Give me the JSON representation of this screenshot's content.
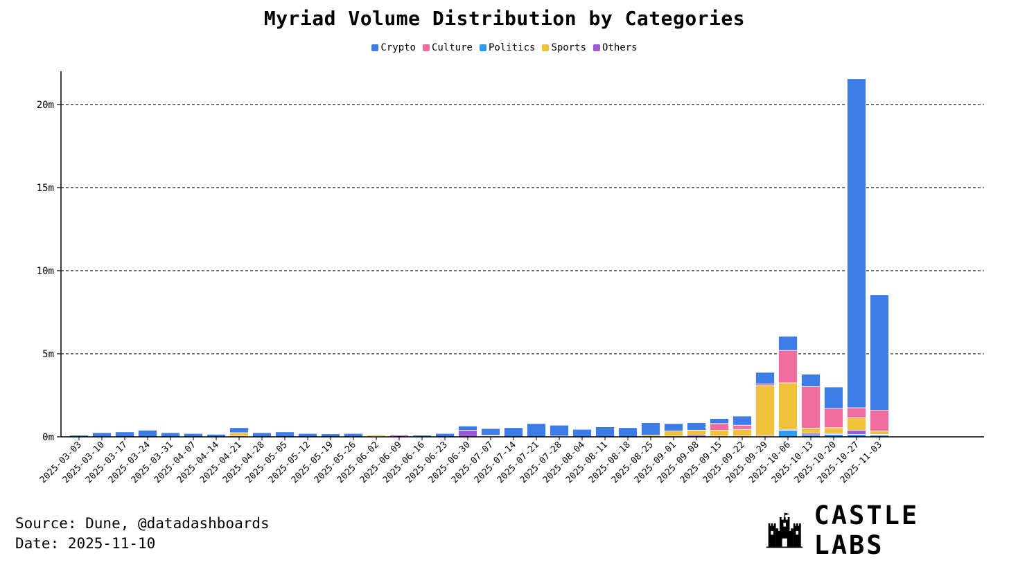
{
  "chart_data": {
    "type": "bar",
    "stacked": true,
    "title": "Myriad Volume Distribution by Categories",
    "xlabel": "",
    "ylabel": "",
    "ylim": [
      0,
      22
    ],
    "y_ticks": [
      0,
      5,
      10,
      15,
      20
    ],
    "y_tick_labels": [
      "0m",
      "5m",
      "10m",
      "15m",
      "20m"
    ],
    "grid": "horizontal dashed",
    "legend_position": "top-center",
    "categories": [
      "2025-03-03",
      "2025-03-10",
      "2025-03-17",
      "2025-03-24",
      "2025-03-31",
      "2025-04-07",
      "2025-04-14",
      "2025-04-21",
      "2025-04-28",
      "2025-05-05",
      "2025-05-12",
      "2025-05-19",
      "2025-05-26",
      "2025-06-02",
      "2025-06-09",
      "2025-06-16",
      "2025-06-23",
      "2025-06-30",
      "2025-07-07",
      "2025-07-14",
      "2025-07-21",
      "2025-07-28",
      "2025-08-04",
      "2025-08-11",
      "2025-08-18",
      "2025-08-25",
      "2025-09-01",
      "2025-09-08",
      "2025-09-15",
      "2025-09-22",
      "2025-09-29",
      "2025-10-06",
      "2025-10-13",
      "2025-10-20",
      "2025-10-27",
      "2025-11-03"
    ],
    "series": [
      {
        "name": "Politics",
        "color": "#2d9bf0",
        "values": [
          0,
          0,
          0,
          0,
          0,
          0,
          0,
          0,
          0,
          0,
          0,
          0,
          0,
          0,
          0,
          0,
          0,
          0,
          0,
          0,
          0,
          0,
          0,
          0,
          0,
          0,
          0,
          0,
          0,
          0,
          0.03,
          0.4,
          0.12,
          0.15,
          0.15,
          0.1
        ]
      },
      {
        "name": "Others",
        "color": "#9b59d6",
        "values": [
          0,
          0,
          0,
          0,
          0,
          0,
          0,
          0.05,
          0,
          0,
          0,
          0,
          0,
          0.02,
          0.1,
          0,
          0,
          0.4,
          0.05,
          0,
          0,
          0.05,
          0,
          0,
          0,
          0,
          0.05,
          0.1,
          0.05,
          0.05,
          0.05,
          0.05,
          0.1,
          0.05,
          0.25,
          0.05
        ]
      },
      {
        "name": "Sports",
        "color": "#f0c23c",
        "values": [
          0,
          0,
          0,
          0,
          0,
          0,
          0,
          0.2,
          0,
          0,
          0,
          0,
          0,
          0.08,
          0,
          0,
          0,
          0,
          0.05,
          0,
          0,
          0,
          0,
          0,
          0,
          0.1,
          0.3,
          0.3,
          0.35,
          0.4,
          3.0,
          2.8,
          0.3,
          0.35,
          0.75,
          0.2
        ]
      },
      {
        "name": "Culture",
        "color": "#f06b9e",
        "values": [
          0,
          0,
          0,
          0,
          0,
          0,
          0,
          0,
          0,
          0,
          0,
          0,
          0,
          0,
          0.03,
          0,
          0,
          0,
          0,
          0,
          0,
          0,
          0,
          0,
          0,
          0,
          0,
          0,
          0.4,
          0.25,
          0.1,
          1.95,
          2.5,
          1.15,
          0.6,
          1.25
        ]
      },
      {
        "name": "Crypto",
        "color": "#3d7be6",
        "values": [
          0.1,
          0.25,
          0.3,
          0.4,
          0.25,
          0.2,
          0.15,
          0.3,
          0.25,
          0.3,
          0.2,
          0.18,
          0.2,
          0,
          0,
          0.1,
          0.2,
          0.25,
          0.4,
          0.55,
          0.8,
          0.65,
          0.45,
          0.6,
          0.55,
          0.75,
          0.45,
          0.45,
          0.3,
          0.55,
          0.7,
          0.85,
          0.75,
          1.3,
          19.8,
          6.95
        ]
      }
    ],
    "legend_order": [
      "Crypto",
      "Culture",
      "Politics",
      "Sports",
      "Others"
    ]
  },
  "footer": {
    "source": "Source: Dune, @datadashboards",
    "date": "Date: 2025-11-10"
  },
  "brand": {
    "name": "CASTLE LABS",
    "logo_icon": "castle-icon"
  }
}
